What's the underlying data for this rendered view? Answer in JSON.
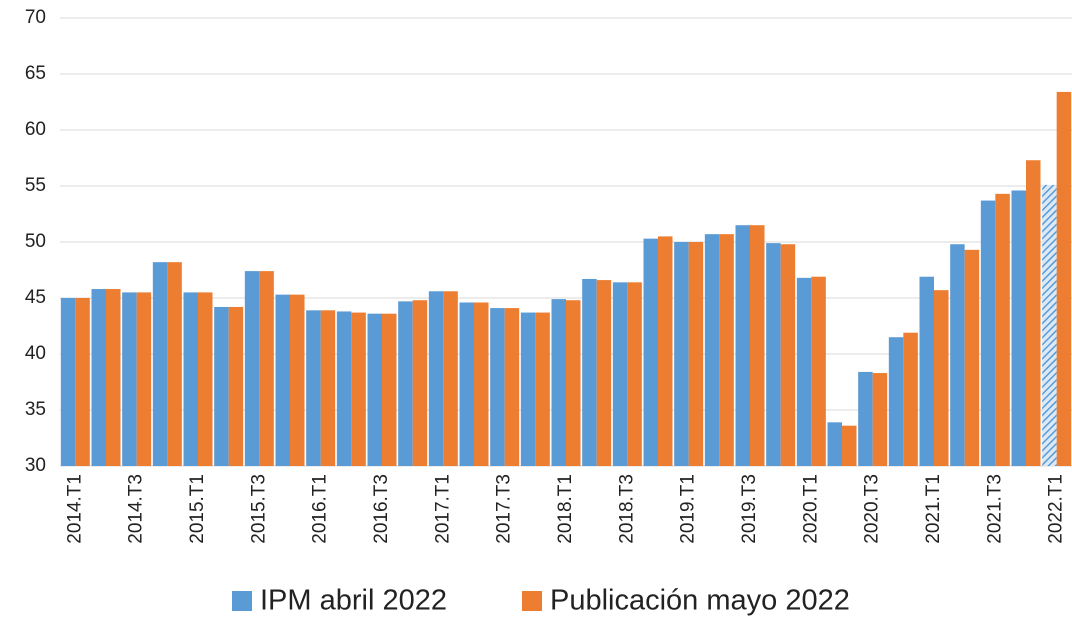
{
  "chart_data": {
    "type": "bar",
    "categories": [
      "2014.T1",
      null,
      "2014.T3",
      null,
      "2015.T1",
      null,
      "2015.T3",
      null,
      "2016.T1",
      null,
      "2016.T3",
      null,
      "2017.T1",
      null,
      "2017.T3",
      null,
      "2018.T1",
      null,
      "2018.T3",
      null,
      "2019.T1",
      null,
      "2019.T3",
      null,
      "2020.T1",
      null,
      "2020.T3",
      null,
      "2021.T1",
      null,
      "2021.T3",
      null,
      "2022.T1"
    ],
    "series": [
      {
        "name": "IPM abril 2022",
        "color": "#5b9bd5",
        "values": [
          45.0,
          45.8,
          45.5,
          48.2,
          45.5,
          44.2,
          47.4,
          45.3,
          43.9,
          43.8,
          43.6,
          44.7,
          45.6,
          44.6,
          44.1,
          43.7,
          44.9,
          46.7,
          46.4,
          50.3,
          50.0,
          50.7,
          51.5,
          49.9,
          46.8,
          33.9,
          38.4,
          41.5,
          46.9,
          49.8,
          53.7,
          54.6,
          55.1
        ]
      },
      {
        "name": "Publicación mayo 2022",
        "color": "#ed7d31",
        "values": [
          45.0,
          45.8,
          45.5,
          48.2,
          45.5,
          44.2,
          47.4,
          45.3,
          43.9,
          43.7,
          43.6,
          44.8,
          45.6,
          44.6,
          44.1,
          43.7,
          44.8,
          46.6,
          46.4,
          50.5,
          50.0,
          50.7,
          51.5,
          49.8,
          46.9,
          33.6,
          38.3,
          41.9,
          45.7,
          49.3,
          54.3,
          57.3,
          63.4
        ]
      }
    ],
    "ylim": [
      30,
      70
    ],
    "yticks": [
      30,
      35,
      40,
      45,
      50,
      55,
      60,
      65,
      70
    ],
    "grid": true,
    "legend": "bottom"
  }
}
